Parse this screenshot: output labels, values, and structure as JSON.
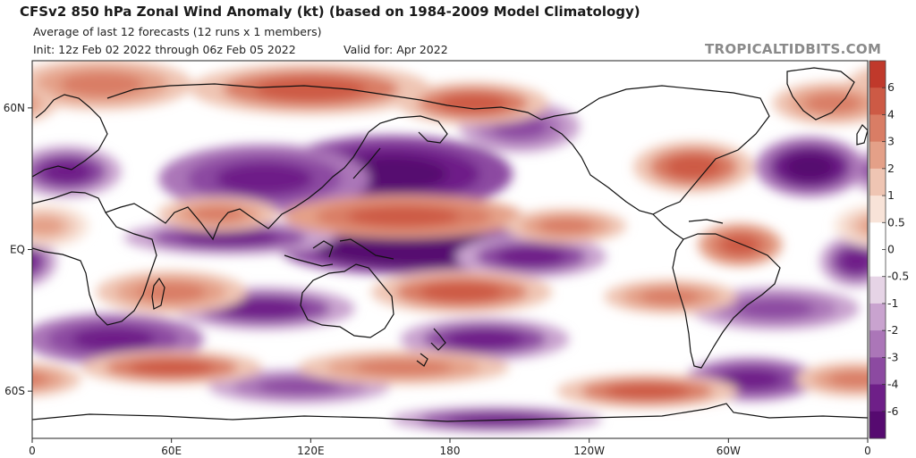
{
  "header": {
    "title": "CFSv2 850 hPa Zonal Wind Anomaly (kt) (based on 1984-2009 Model Climatology)",
    "subtitle": "Average of last 12 forecasts (12 runs x 1 members)",
    "init": "Init: 12z Feb 02 2022 through 06z Feb 05 2022",
    "valid": "Valid for: Apr 2022",
    "brand": "TROPICALTIDBITS.COM"
  },
  "map": {
    "variable": "850 hPa zonal wind anomaly",
    "units": "kt",
    "lon_ticks": [
      "0",
      "60E",
      "120E",
      "180",
      "120W",
      "60W",
      "0"
    ],
    "lat_ticks": [
      "60N",
      "EQ",
      "60S"
    ],
    "lat_tick_values": [
      60,
      0,
      -60
    ],
    "lat_range": [
      -80,
      80
    ],
    "lon_range": [
      0,
      360
    ],
    "anomaly_centers": [
      {
        "lon": 155,
        "lat": 32,
        "value": -7,
        "rx": 40,
        "ry": 9
      },
      {
        "lon": 100,
        "lat": 30,
        "value": -5,
        "rx": 35,
        "ry": 8
      },
      {
        "lon": 15,
        "lat": 33,
        "value": -4,
        "rx": 18,
        "ry": 6
      },
      {
        "lon": 335,
        "lat": 35,
        "value": -6,
        "rx": 18,
        "ry": 7
      },
      {
        "lon": 210,
        "lat": 52,
        "value": -3,
        "rx": 20,
        "ry": 6
      },
      {
        "lon": 165,
        "lat": 0,
        "value": -8,
        "rx": 45,
        "ry": 6
      },
      {
        "lon": 215,
        "lat": -3,
        "value": -4,
        "rx": 25,
        "ry": 5
      },
      {
        "lon": 85,
        "lat": 5,
        "value": -4,
        "rx": 35,
        "ry": 4
      },
      {
        "lon": 355,
        "lat": -5,
        "value": -4,
        "rx": 12,
        "ry": 6
      },
      {
        "lon": 100,
        "lat": -25,
        "value": -4,
        "rx": 30,
        "ry": 5
      },
      {
        "lon": 320,
        "lat": -25,
        "value": -3,
        "rx": 28,
        "ry": 5
      },
      {
        "lon": 35,
        "lat": -38,
        "value": -5,
        "rx": 30,
        "ry": 6
      },
      {
        "lon": 195,
        "lat": -38,
        "value": -4,
        "rx": 28,
        "ry": 5
      },
      {
        "lon": 310,
        "lat": -55,
        "value": -5,
        "rx": 22,
        "ry": 5
      },
      {
        "lon": 115,
        "lat": -58,
        "value": -3,
        "rx": 30,
        "ry": 4
      },
      {
        "lon": 200,
        "lat": -72,
        "value": -4,
        "rx": 35,
        "ry": 3
      },
      {
        "lon": 120,
        "lat": 68,
        "value": 4,
        "rx": 40,
        "ry": 6
      },
      {
        "lon": 190,
        "lat": 62,
        "value": 4,
        "rx": 25,
        "ry": 5
      },
      {
        "lon": 30,
        "lat": 70,
        "value": 3,
        "rx": 30,
        "ry": 6
      },
      {
        "lon": 345,
        "lat": 62,
        "value": 3,
        "rx": 20,
        "ry": 5
      },
      {
        "lon": 160,
        "lat": 14,
        "value": 5,
        "rx": 40,
        "ry": 5
      },
      {
        "lon": 80,
        "lat": 15,
        "value": 3,
        "rx": 20,
        "ry": 4
      },
      {
        "lon": 285,
        "lat": 35,
        "value": 4,
        "rx": 20,
        "ry": 6
      },
      {
        "lon": 230,
        "lat": 10,
        "value": 3,
        "rx": 20,
        "ry": 4
      },
      {
        "lon": 305,
        "lat": 2,
        "value": 5,
        "rx": 14,
        "ry": 5
      },
      {
        "lon": 5,
        "lat": 10,
        "value": 2,
        "rx": 15,
        "ry": 5
      },
      {
        "lon": 185,
        "lat": -18,
        "value": 4,
        "rx": 30,
        "ry": 5
      },
      {
        "lon": 60,
        "lat": -18,
        "value": 3,
        "rx": 25,
        "ry": 5
      },
      {
        "lon": 275,
        "lat": -20,
        "value": 3,
        "rx": 22,
        "ry": 4
      },
      {
        "lon": 60,
        "lat": -50,
        "value": 4,
        "rx": 30,
        "ry": 4
      },
      {
        "lon": 160,
        "lat": -50,
        "value": 3,
        "rx": 35,
        "ry": 4
      },
      {
        "lon": 265,
        "lat": -60,
        "value": 4,
        "rx": 30,
        "ry": 4
      },
      {
        "lon": 355,
        "lat": -55,
        "value": 3,
        "rx": 20,
        "ry": 4
      }
    ]
  },
  "colorbar": {
    "levels": [
      "6",
      "4",
      "3",
      "2",
      "1",
      "0.5",
      "0",
      "-0.5",
      "-1",
      "-2",
      "-3",
      "-4",
      "-6"
    ],
    "colors": [
      "#c0392b",
      "#cd5a45",
      "#d97d65",
      "#e4a088",
      "#efc5b3",
      "#f8e3d8",
      "#ffffff",
      "#ffffff",
      "#e6d4e6",
      "#c9a3cf",
      "#ab76b8",
      "#8c4aa1",
      "#6e1f88",
      "#560a70"
    ]
  }
}
